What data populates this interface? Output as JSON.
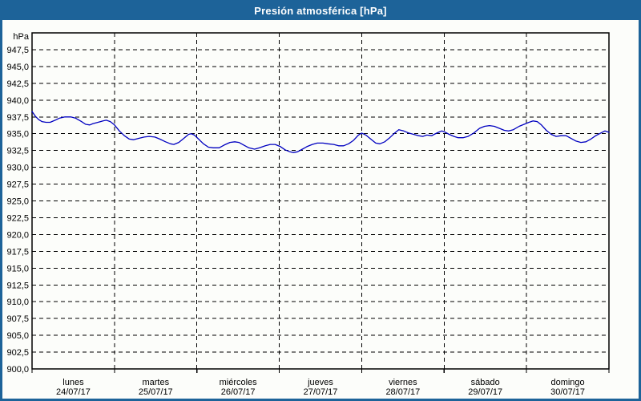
{
  "window": {
    "title": "Presión atmosférica [hPa]"
  },
  "colors": {
    "titlebar": "#1d6399",
    "window_border": "#1d6399",
    "background": "#fcfdfa",
    "plot_border": "#000000",
    "grid": "#000000",
    "line": "#0000c0",
    "text": "#000000",
    "title_text": "#ffffff"
  },
  "chart_data": {
    "type": "line",
    "title": "Presión atmosférica [hPa]",
    "ylabel": "hPa",
    "xlabel": "",
    "grid": "dashed",
    "legend": "none",
    "y_axis": {
      "min": 900,
      "max": 950,
      "tick_step": 2.5,
      "unit_label": "hPa",
      "decimal_separator": ",",
      "tick_labels": [
        "947,5",
        "945,0",
        "942,5",
        "940,0",
        "937,5",
        "935,0",
        "932,5",
        "930,0",
        "927,5",
        "925,0",
        "922,5",
        "920,0",
        "917,5",
        "915,0",
        "912,5",
        "910,0",
        "907,5",
        "905,0",
        "902,5",
        "900,0"
      ]
    },
    "x_axis": {
      "span_days": 7,
      "days": [
        {
          "name": "lunes",
          "date": "24/07/17"
        },
        {
          "name": "martes",
          "date": "25/07/17"
        },
        {
          "name": "miércoles",
          "date": "26/07/17"
        },
        {
          "name": "jueves",
          "date": "27/07/17"
        },
        {
          "name": "viernes",
          "date": "28/07/17"
        },
        {
          "name": "sábado",
          "date": "29/07/17"
        },
        {
          "name": "domingo",
          "date": "30/07/17"
        }
      ]
    },
    "series": [
      {
        "name": "Presión atmosférica",
        "color": "#0000c0",
        "points": [
          [
            0.0,
            938.3
          ],
          [
            0.04,
            937.6
          ],
          [
            0.08,
            937.1
          ],
          [
            0.12,
            936.8
          ],
          [
            0.17,
            936.7
          ],
          [
            0.22,
            936.7
          ],
          [
            0.28,
            937.0
          ],
          [
            0.33,
            937.3
          ],
          [
            0.4,
            937.5
          ],
          [
            0.47,
            937.5
          ],
          [
            0.53,
            937.3
          ],
          [
            0.6,
            936.8
          ],
          [
            0.65,
            936.4
          ],
          [
            0.7,
            936.3
          ],
          [
            0.74,
            936.5
          ],
          [
            0.8,
            936.7
          ],
          [
            0.86,
            936.9
          ],
          [
            0.9,
            937.0
          ],
          [
            0.95,
            936.8
          ],
          [
            1.0,
            936.3
          ],
          [
            1.06,
            935.4
          ],
          [
            1.12,
            934.7
          ],
          [
            1.18,
            934.2
          ],
          [
            1.23,
            934.1
          ],
          [
            1.29,
            934.3
          ],
          [
            1.36,
            934.5
          ],
          [
            1.42,
            934.6
          ],
          [
            1.49,
            934.5
          ],
          [
            1.55,
            934.2
          ],
          [
            1.62,
            933.8
          ],
          [
            1.68,
            933.5
          ],
          [
            1.72,
            933.4
          ],
          [
            1.78,
            933.7
          ],
          [
            1.84,
            934.3
          ],
          [
            1.9,
            934.9
          ],
          [
            1.93,
            935.0
          ],
          [
            1.97,
            934.8
          ],
          [
            2.02,
            934.2
          ],
          [
            2.08,
            933.5
          ],
          [
            2.14,
            933.0
          ],
          [
            2.2,
            932.9
          ],
          [
            2.27,
            932.9
          ],
          [
            2.33,
            933.3
          ],
          [
            2.4,
            933.7
          ],
          [
            2.46,
            933.8
          ],
          [
            2.51,
            933.7
          ],
          [
            2.57,
            933.3
          ],
          [
            2.63,
            932.9
          ],
          [
            2.7,
            932.7
          ],
          [
            2.76,
            932.9
          ],
          [
            2.83,
            933.2
          ],
          [
            2.89,
            933.4
          ],
          [
            2.95,
            933.4
          ],
          [
            3.01,
            933.1
          ],
          [
            3.07,
            932.6
          ],
          [
            3.13,
            932.3
          ],
          [
            3.17,
            932.2
          ],
          [
            3.22,
            932.3
          ],
          [
            3.28,
            932.7
          ],
          [
            3.34,
            933.1
          ],
          [
            3.4,
            933.4
          ],
          [
            3.46,
            933.6
          ],
          [
            3.53,
            933.6
          ],
          [
            3.59,
            933.5
          ],
          [
            3.66,
            933.4
          ],
          [
            3.72,
            933.2
          ],
          [
            3.78,
            933.2
          ],
          [
            3.84,
            933.5
          ],
          [
            3.9,
            934.0
          ],
          [
            3.96,
            934.8
          ],
          [
            4.0,
            935.1
          ],
          [
            4.05,
            934.8
          ],
          [
            4.11,
            934.2
          ],
          [
            4.17,
            933.6
          ],
          [
            4.22,
            933.5
          ],
          [
            4.28,
            933.8
          ],
          [
            4.34,
            934.4
          ],
          [
            4.4,
            935.1
          ],
          [
            4.45,
            935.6
          ],
          [
            4.51,
            935.4
          ],
          [
            4.57,
            935.1
          ],
          [
            4.63,
            934.9
          ],
          [
            4.69,
            934.7
          ],
          [
            4.74,
            934.6
          ],
          [
            4.79,
            934.8
          ],
          [
            4.85,
            934.7
          ],
          [
            4.88,
            934.9
          ],
          [
            4.93,
            935.2
          ],
          [
            4.97,
            935.4
          ],
          [
            5.0,
            935.3
          ],
          [
            5.06,
            934.9
          ],
          [
            5.12,
            934.6
          ],
          [
            5.17,
            934.4
          ],
          [
            5.23,
            934.4
          ],
          [
            5.29,
            934.6
          ],
          [
            5.36,
            935.1
          ],
          [
            5.43,
            935.8
          ],
          [
            5.49,
            936.1
          ],
          [
            5.55,
            936.2
          ],
          [
            5.61,
            936.1
          ],
          [
            5.67,
            935.8
          ],
          [
            5.73,
            935.5
          ],
          [
            5.78,
            935.4
          ],
          [
            5.84,
            935.6
          ],
          [
            5.91,
            936.1
          ],
          [
            5.97,
            936.4
          ],
          [
            6.03,
            936.7
          ],
          [
            6.08,
            936.9
          ],
          [
            6.13,
            936.8
          ],
          [
            6.18,
            936.3
          ],
          [
            6.24,
            935.5
          ],
          [
            6.3,
            934.9
          ],
          [
            6.36,
            934.6
          ],
          [
            6.42,
            934.7
          ],
          [
            6.48,
            934.7
          ],
          [
            6.54,
            934.3
          ],
          [
            6.6,
            933.9
          ],
          [
            6.66,
            933.7
          ],
          [
            6.72,
            933.8
          ],
          [
            6.78,
            934.2
          ],
          [
            6.84,
            934.7
          ],
          [
            6.9,
            935.1
          ],
          [
            6.95,
            935.4
          ],
          [
            6.98,
            935.3
          ],
          [
            7.0,
            935.2
          ]
        ]
      }
    ]
  }
}
